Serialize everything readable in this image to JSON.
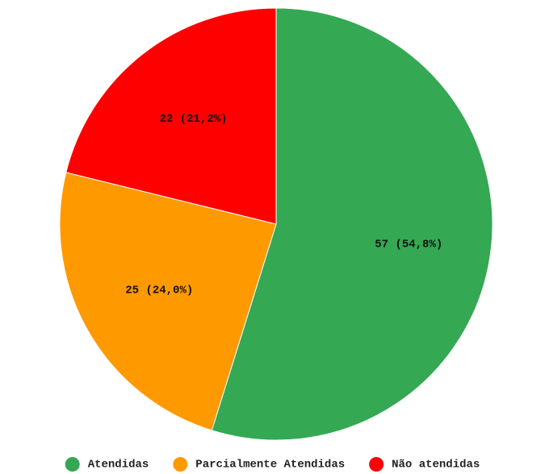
{
  "chart_data": {
    "type": "pie",
    "title": "",
    "slices": [
      {
        "name": "Atendidas",
        "value": 57,
        "percent": 54.8,
        "label": "57 (54,8%)",
        "color": "#34a853"
      },
      {
        "name": "Parcialmente Atendidas",
        "value": 25,
        "percent": 24.0,
        "label": "25 (24,0%)",
        "color": "#ff9900"
      },
      {
        "name": "Não atendidas",
        "value": 22,
        "percent": 21.2,
        "label": "22 (21,2%)",
        "color": "#ff0000"
      }
    ],
    "start_angle": "12 o'clock",
    "direction": "clockwise",
    "legend_position": "bottom"
  }
}
